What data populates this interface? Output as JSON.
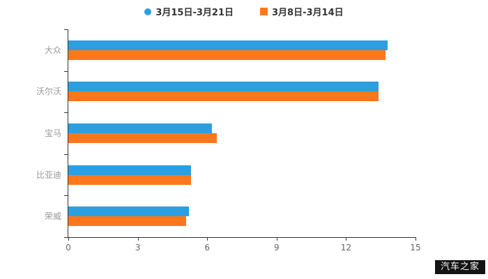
{
  "legend": [
    {
      "label": "3月15日-3月21日",
      "color": "#2C9FE0",
      "marker": "circle"
    },
    {
      "label": "3月8日-3月14日",
      "color": "#FF771C",
      "marker": "square"
    }
  ],
  "chart_data": {
    "type": "bar",
    "orientation": "horizontal",
    "title": "",
    "xlabel": "",
    "ylabel": "",
    "categories": [
      "大众",
      "沃尔沃",
      "宝马",
      "比亚迪",
      "荣威"
    ],
    "series": [
      {
        "name": "3月15日-3月21日",
        "color": "#2C9FE0",
        "values": [
          13.8,
          13.4,
          6.2,
          5.3,
          5.2
        ]
      },
      {
        "name": "3月8日-3月14日",
        "color": "#FF771C",
        "values": [
          13.7,
          13.4,
          6.4,
          5.3,
          5.1
        ]
      }
    ],
    "xlim": [
      0,
      15
    ],
    "xticks": [
      0,
      3,
      6,
      9,
      12,
      15
    ],
    "grid": false,
    "legend_position": "top"
  },
  "watermark": "汽车之家"
}
